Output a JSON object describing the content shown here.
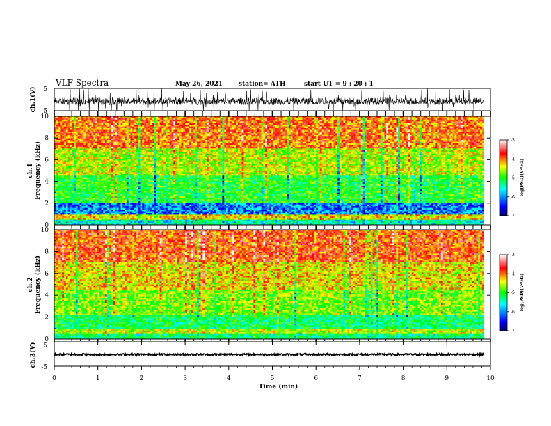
{
  "header": {
    "title": "VLF Spectra",
    "date": "May 26, 2021",
    "station": "station= ATH",
    "start_ut": "start UT =   9 : 20 : 1"
  },
  "chart_data": [
    {
      "type": "line",
      "panel": "ch.1 waveform",
      "ylabel": "ch.1(V)",
      "ylim": [
        -5,
        5
      ],
      "ytick_labels": [
        "5",
        "-5"
      ],
      "xlim": [
        0,
        10
      ],
      "series": [
        {
          "name": "",
          "description_values": {
            "mean": -0.8,
            "min": -5,
            "max": 5
          }
        }
      ]
    },
    {
      "type": "heatmap",
      "panel": "ch.1 spectrogram",
      "ylabel": "ch.1\nFrequency (kHz)",
      "ylabel_line1": "ch.1",
      "ylabel_line2": "Frequency (kHz)",
      "ylim": [
        0,
        10
      ],
      "ytick_labels": [
        "0",
        "2",
        "4",
        "6",
        "8",
        "10"
      ],
      "xlim": [
        0,
        10
      ],
      "colorbar": {
        "label": "log(PSD)(V²/Hz)",
        "range": [
          -7,
          -3
        ],
        "tick_labels": [
          "-3",
          "-4",
          "-5",
          "-6",
          "-7"
        ],
        "colormap": [
          "#00008b",
          "#0000ff",
          "#00ffff",
          "#00ff00",
          "#ffff00",
          "#ff0000",
          "#ffffff"
        ]
      },
      "bands_log_psd": [
        {
          "f_from": 0,
          "f_to": 0.5,
          "value": -5.5
        },
        {
          "f_from": 0.5,
          "f_to": 1.0,
          "value": -4.3
        },
        {
          "f_from": 1.0,
          "f_to": 2.0,
          "value": -6.0
        },
        {
          "f_from": 2.0,
          "f_to": 4.5,
          "value": -5.0
        },
        {
          "f_from": 4.5,
          "f_to": 7.0,
          "value": -4.5
        },
        {
          "f_from": 7.0,
          "f_to": 10.0,
          "value": -3.9
        }
      ]
    },
    {
      "type": "heatmap",
      "panel": "ch.2 spectrogram",
      "ylabel": "ch.2\nFrequency (kHz)",
      "ylabel_line1": "ch.2",
      "ylabel_line2": "Frequency (kHz)",
      "ylim": [
        0,
        10
      ],
      "ytick_labels": [
        "0",
        "2",
        "4",
        "6",
        "8",
        "10"
      ],
      "xlim": [
        0,
        10
      ],
      "colorbar": {
        "label": "log(PSD)(V²/Hz)",
        "range": [
          -7,
          -3
        ],
        "tick_labels": [
          "-3",
          "-4",
          "-5",
          "-6",
          "-7"
        ],
        "colormap": [
          "#00008b",
          "#0000ff",
          "#00ffff",
          "#00ff00",
          "#ffff00",
          "#ff0000",
          "#ffffff"
        ]
      },
      "bands_log_psd": [
        {
          "f_from": 0,
          "f_to": 0.5,
          "value": -5.3
        },
        {
          "f_from": 0.5,
          "f_to": 1.0,
          "value": -4.5
        },
        {
          "f_from": 1.0,
          "f_to": 2.2,
          "value": -5.2
        },
        {
          "f_from": 2.2,
          "f_to": 4.5,
          "value": -4.7
        },
        {
          "f_from": 4.5,
          "f_to": 7.0,
          "value": -4.3
        },
        {
          "f_from": 7.0,
          "f_to": 10.0,
          "value": -3.8
        }
      ]
    },
    {
      "type": "line",
      "panel": "ch.3 waveform",
      "ylabel": "ch.3(V)",
      "ylim": [
        -5,
        5
      ],
      "ytick_labels": [
        "5",
        "-5"
      ],
      "xlim": [
        0,
        10
      ],
      "series": [
        {
          "name": "",
          "description_values": {
            "mean": -0.2,
            "min": -0.6,
            "max": 0.2
          }
        }
      ]
    }
  ],
  "xaxis": {
    "label": "Time (min)",
    "tick_labels": [
      "0",
      "1",
      "2",
      "3",
      "4",
      "5",
      "6",
      "7",
      "8",
      "9",
      "10"
    ],
    "xlim": [
      0,
      10
    ],
    "data_end": 9.85
  }
}
